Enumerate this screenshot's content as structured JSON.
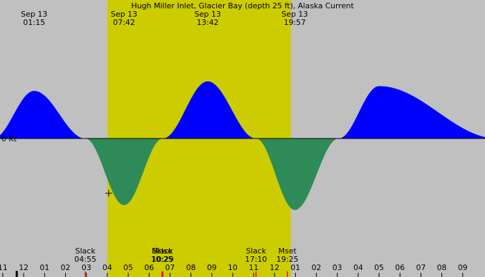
{
  "chart_data": {
    "type": "area",
    "title": "Hugh Miller Inlet, Glacier Bay (depth 25 ft), Alaska Current",
    "zero_label": "0 Kt",
    "colors": {
      "night_bg": "#c0c0c0",
      "day_bg": "#cccc00",
      "flood": "#0000ff",
      "ebb": "#2e8b57",
      "axis": "#000000",
      "event_tick": "#ff0000"
    },
    "x_range_hours": [
      -1.2,
      33.6
    ],
    "y_range_kt": [
      -1.6,
      1.6
    ],
    "day_interval": [
      "06:30",
      "19:40"
    ],
    "peaks": [
      {
        "date": "Sep 13",
        "time": "01:15",
        "hour": 1.25,
        "value": 1.0
      },
      {
        "date": "Sep 13",
        "time": "07:42",
        "hour": 7.7,
        "value": -1.4
      },
      {
        "date": "Sep 13",
        "time": "13:42",
        "hour": 13.7,
        "value": 1.2
      },
      {
        "date": "Sep 13",
        "time": "19:57",
        "hour": 19.95,
        "value": -1.5
      }
    ],
    "events": [
      {
        "label": "Slack",
        "time": "04:55",
        "hour": 4.92
      },
      {
        "label": "Mrise",
        "time": "10:25",
        "hour": 10.42
      },
      {
        "label": "Slack",
        "time": "10:29",
        "hour": 10.48
      },
      {
        "label": "Slack",
        "time": "17:10",
        "hour": 17.17
      },
      {
        "label": "Mset",
        "time": "19:25",
        "hour": 19.42
      }
    ],
    "x_ticks": [
      "11",
      "12",
      "01",
      "02",
      "03",
      "04",
      "05",
      "06",
      "07",
      "08",
      "09",
      "10",
      "11",
      "12",
      "01",
      "02",
      "03",
      "04",
      "05",
      "06",
      "07",
      "08",
      "09"
    ],
    "cursor_hour": 6.6,
    "cursor_value": -1.15
  }
}
